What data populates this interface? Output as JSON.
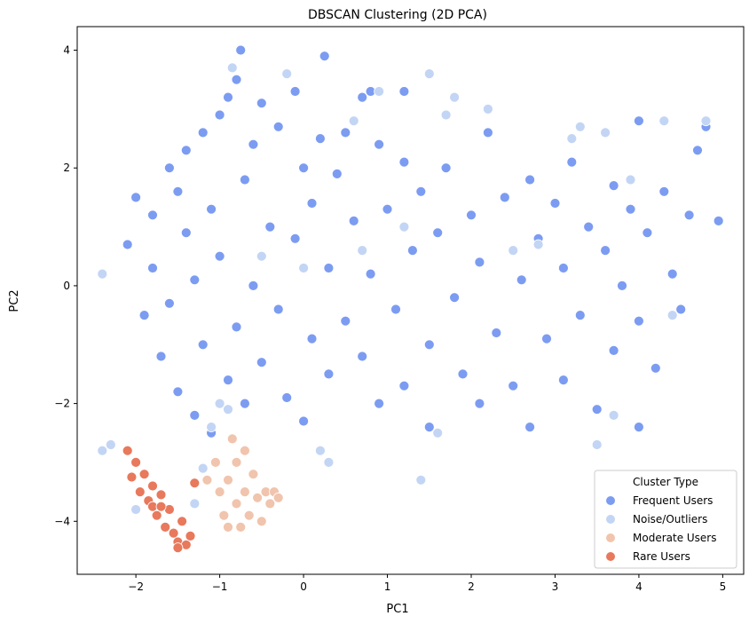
{
  "chart_data": {
    "type": "scatter",
    "title": "DBSCAN Clustering (2D PCA)",
    "xlabel": "PC1",
    "ylabel": "PC2",
    "xlim": [
      -2.7,
      5.25
    ],
    "ylim": [
      -4.9,
      4.4
    ],
    "xticks": [
      -2,
      -1,
      0,
      1,
      2,
      3,
      4,
      5
    ],
    "yticks": [
      -4,
      -2,
      0,
      2,
      4
    ],
    "xtick_labels": [
      "−2",
      "−1",
      "0",
      "1",
      "2",
      "3",
      "4",
      "5"
    ],
    "ytick_labels": [
      "−4",
      "−2",
      "0",
      "2",
      "4"
    ],
    "grid": false,
    "legend": {
      "title": "Cluster Type",
      "placement": "lower-right",
      "entries": [
        "Frequent Users",
        "Noise/Outliers",
        "Moderate Users",
        "Rare Users"
      ]
    },
    "series": [
      {
        "name": "Frequent Users",
        "color": "#7c9cf2",
        "points": [
          [
            -2.1,
            0.7
          ],
          [
            -2.0,
            1.5
          ],
          [
            -1.9,
            -0.5
          ],
          [
            -1.8,
            0.3
          ],
          [
            -1.8,
            1.2
          ],
          [
            -1.7,
            -1.2
          ],
          [
            -1.6,
            2.0
          ],
          [
            -1.6,
            -0.3
          ],
          [
            -1.5,
            1.6
          ],
          [
            -1.5,
            -1.8
          ],
          [
            -1.4,
            0.9
          ],
          [
            -1.4,
            2.3
          ],
          [
            -1.3,
            -2.2
          ],
          [
            -1.3,
            0.1
          ],
          [
            -1.2,
            2.6
          ],
          [
            -1.2,
            -1.0
          ],
          [
            -1.1,
            1.3
          ],
          [
            -1.1,
            -2.5
          ],
          [
            -1.0,
            2.9
          ],
          [
            -1.0,
            0.5
          ],
          [
            -0.9,
            -1.6
          ],
          [
            -0.9,
            3.2
          ],
          [
            -0.8,
            3.5
          ],
          [
            -0.8,
            -0.7
          ],
          [
            -0.7,
            1.8
          ],
          [
            -0.7,
            -2.0
          ],
          [
            -0.6,
            2.4
          ],
          [
            -0.6,
            0.0
          ],
          [
            -0.5,
            3.1
          ],
          [
            -0.5,
            -1.3
          ],
          [
            -0.4,
            1.0
          ],
          [
            -0.3,
            2.7
          ],
          [
            -0.3,
            -0.4
          ],
          [
            -0.2,
            -1.9
          ],
          [
            -0.1,
            3.3
          ],
          [
            -0.1,
            0.8
          ],
          [
            0.0,
            2.0
          ],
          [
            0.0,
            -2.3
          ],
          [
            0.1,
            1.4
          ],
          [
            0.1,
            -0.9
          ],
          [
            0.2,
            2.5
          ],
          [
            0.3,
            -1.5
          ],
          [
            0.3,
            0.3
          ],
          [
            0.4,
            1.9
          ],
          [
            0.5,
            -0.6
          ],
          [
            0.5,
            2.6
          ],
          [
            0.6,
            1.1
          ],
          [
            0.7,
            3.2
          ],
          [
            0.7,
            -1.2
          ],
          [
            0.8,
            0.2
          ],
          [
            0.9,
            2.4
          ],
          [
            0.9,
            -2.0
          ],
          [
            1.0,
            1.3
          ],
          [
            1.1,
            -0.4
          ],
          [
            1.2,
            2.1
          ],
          [
            1.2,
            -1.7
          ],
          [
            1.3,
            0.6
          ],
          [
            1.4,
            1.6
          ],
          [
            1.5,
            -1.0
          ],
          [
            1.5,
            -2.4
          ],
          [
            1.6,
            0.9
          ],
          [
            1.7,
            2.0
          ],
          [
            1.8,
            -0.2
          ],
          [
            1.9,
            -1.5
          ],
          [
            2.0,
            1.2
          ],
          [
            2.1,
            -2.0
          ],
          [
            2.1,
            0.4
          ],
          [
            2.2,
            2.6
          ],
          [
            2.3,
            -0.8
          ],
          [
            2.4,
            1.5
          ],
          [
            2.5,
            -1.7
          ],
          [
            2.6,
            0.1
          ],
          [
            2.7,
            1.8
          ],
          [
            2.7,
            -2.4
          ],
          [
            2.8,
            0.8
          ],
          [
            2.9,
            -0.9
          ],
          [
            3.0,
            1.4
          ],
          [
            3.1,
            -1.6
          ],
          [
            3.1,
            0.3
          ],
          [
            3.2,
            2.1
          ],
          [
            3.3,
            -0.5
          ],
          [
            3.4,
            1.0
          ],
          [
            3.5,
            -2.1
          ],
          [
            3.6,
            0.6
          ],
          [
            3.7,
            1.7
          ],
          [
            3.7,
            -1.1
          ],
          [
            3.8,
            0.0
          ],
          [
            3.9,
            1.3
          ],
          [
            4.0,
            -0.6
          ],
          [
            4.0,
            2.8
          ],
          [
            4.0,
            -2.4
          ],
          [
            4.1,
            0.9
          ],
          [
            4.2,
            -1.4
          ],
          [
            4.3,
            1.6
          ],
          [
            4.4,
            0.2
          ],
          [
            4.5,
            -0.4
          ],
          [
            4.6,
            1.2
          ],
          [
            4.7,
            2.3
          ],
          [
            4.8,
            2.7
          ],
          [
            4.95,
            1.1
          ],
          [
            0.8,
            3.3
          ],
          [
            -0.75,
            4.0
          ],
          [
            0.25,
            3.9
          ],
          [
            1.2,
            3.3
          ]
        ]
      },
      {
        "name": "Noise/Outliers",
        "color": "#c3d5f4",
        "points": [
          [
            -2.4,
            0.2
          ],
          [
            -2.4,
            -2.8
          ],
          [
            -2.3,
            -2.7
          ],
          [
            -2.0,
            -3.8
          ],
          [
            -1.3,
            -3.7
          ],
          [
            -1.2,
            -3.1
          ],
          [
            -1.1,
            -2.4
          ],
          [
            -1.0,
            -2.0
          ],
          [
            -0.9,
            -2.1
          ],
          [
            -0.85,
            3.7
          ],
          [
            -0.5,
            0.5
          ],
          [
            -0.2,
            3.6
          ],
          [
            0.0,
            0.3
          ],
          [
            0.2,
            -2.8
          ],
          [
            0.3,
            -3.0
          ],
          [
            0.6,
            2.8
          ],
          [
            0.7,
            0.6
          ],
          [
            0.9,
            3.3
          ],
          [
            1.2,
            1.0
          ],
          [
            1.4,
            -3.3
          ],
          [
            1.5,
            3.6
          ],
          [
            1.6,
            -2.5
          ],
          [
            1.7,
            2.9
          ],
          [
            1.8,
            3.2
          ],
          [
            2.2,
            3.0
          ],
          [
            2.5,
            0.6
          ],
          [
            2.8,
            0.7
          ],
          [
            3.2,
            2.5
          ],
          [
            3.3,
            2.7
          ],
          [
            3.5,
            -2.7
          ],
          [
            3.6,
            2.6
          ],
          [
            3.7,
            -2.2
          ],
          [
            3.9,
            1.8
          ],
          [
            4.3,
            2.8
          ],
          [
            4.4,
            -0.5
          ],
          [
            4.8,
            2.8
          ]
        ]
      },
      {
        "name": "Moderate Users",
        "color": "#f1c4ad",
        "points": [
          [
            -1.05,
            -3.0
          ],
          [
            -1.0,
            -3.5
          ],
          [
            -0.95,
            -3.9
          ],
          [
            -0.9,
            -4.1
          ],
          [
            -0.9,
            -3.3
          ],
          [
            -0.85,
            -2.6
          ],
          [
            -0.8,
            -3.0
          ],
          [
            -0.8,
            -3.7
          ],
          [
            -0.75,
            -4.1
          ],
          [
            -0.7,
            -2.8
          ],
          [
            -0.7,
            -3.5
          ],
          [
            -0.65,
            -3.9
          ],
          [
            -0.6,
            -3.2
          ],
          [
            -0.55,
            -3.6
          ],
          [
            -0.5,
            -4.0
          ],
          [
            -0.45,
            -3.5
          ],
          [
            -0.4,
            -3.7
          ],
          [
            -0.35,
            -3.5
          ],
          [
            -1.15,
            -3.3
          ],
          [
            -0.3,
            -3.6
          ]
        ]
      },
      {
        "name": "Rare Users",
        "color": "#e8795c",
        "points": [
          [
            -2.1,
            -2.8
          ],
          [
            -2.05,
            -3.25
          ],
          [
            -2.0,
            -3.0
          ],
          [
            -1.95,
            -3.5
          ],
          [
            -1.9,
            -3.2
          ],
          [
            -1.85,
            -3.65
          ],
          [
            -1.8,
            -3.4
          ],
          [
            -1.75,
            -3.9
          ],
          [
            -1.7,
            -3.55
          ],
          [
            -1.65,
            -4.1
          ],
          [
            -1.6,
            -3.8
          ],
          [
            -1.55,
            -4.2
          ],
          [
            -1.5,
            -4.35
          ],
          [
            -1.45,
            -4.0
          ],
          [
            -1.4,
            -4.4
          ],
          [
            -1.35,
            -4.25
          ],
          [
            -1.3,
            -3.35
          ],
          [
            -1.8,
            -3.75
          ],
          [
            -1.7,
            -3.75
          ],
          [
            -1.5,
            -4.45
          ]
        ]
      }
    ]
  }
}
